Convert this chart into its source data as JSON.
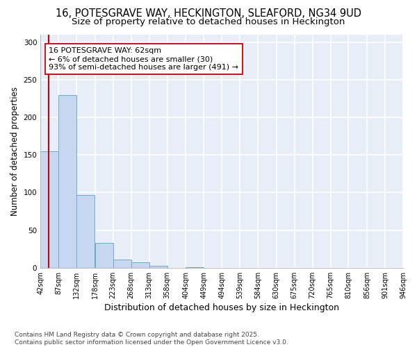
{
  "title_line1": "16, POTESGRAVE WAY, HECKINGTON, SLEAFORD, NG34 9UD",
  "title_line2": "Size of property relative to detached houses in Heckington",
  "xlabel": "Distribution of detached houses by size in Heckington",
  "ylabel": "Number of detached properties",
  "footnote": "Contains HM Land Registry data © Crown copyright and database right 2025.\nContains public sector information licensed under the Open Government Licence v3.0.",
  "bin_edges": [
    42,
    87,
    132,
    178,
    223,
    268,
    313,
    358,
    404,
    449,
    494,
    539,
    584,
    630,
    675,
    720,
    765,
    810,
    856,
    901,
    946
  ],
  "bar_heights": [
    155,
    230,
    97,
    33,
    11,
    7,
    3,
    0,
    1,
    0,
    0,
    0,
    0,
    0,
    0,
    0,
    0,
    0,
    0,
    0
  ],
  "bar_color": "#c5d8f0",
  "bar_edge_color": "#6aaad4",
  "property_size": 62,
  "red_line_color": "#cc0000",
  "annotation_text": "16 POTESGRAVE WAY: 62sqm\n← 6% of detached houses are smaller (30)\n93% of semi-detached houses are larger (491) →",
  "annotation_box_color": "white",
  "annotation_box_edge": "#cc0000",
  "ylim": [
    0,
    310
  ],
  "yticks": [
    0,
    50,
    100,
    150,
    200,
    250,
    300
  ],
  "background_color": "#e8eef8",
  "grid_color": "white",
  "title_fontsize": 10.5,
  "subtitle_fontsize": 9.5,
  "ylabel_fontsize": 8.5,
  "xlabel_fontsize": 9,
  "tick_fontsize": 7,
  "annotation_fontsize": 8,
  "footnote_fontsize": 6.5
}
